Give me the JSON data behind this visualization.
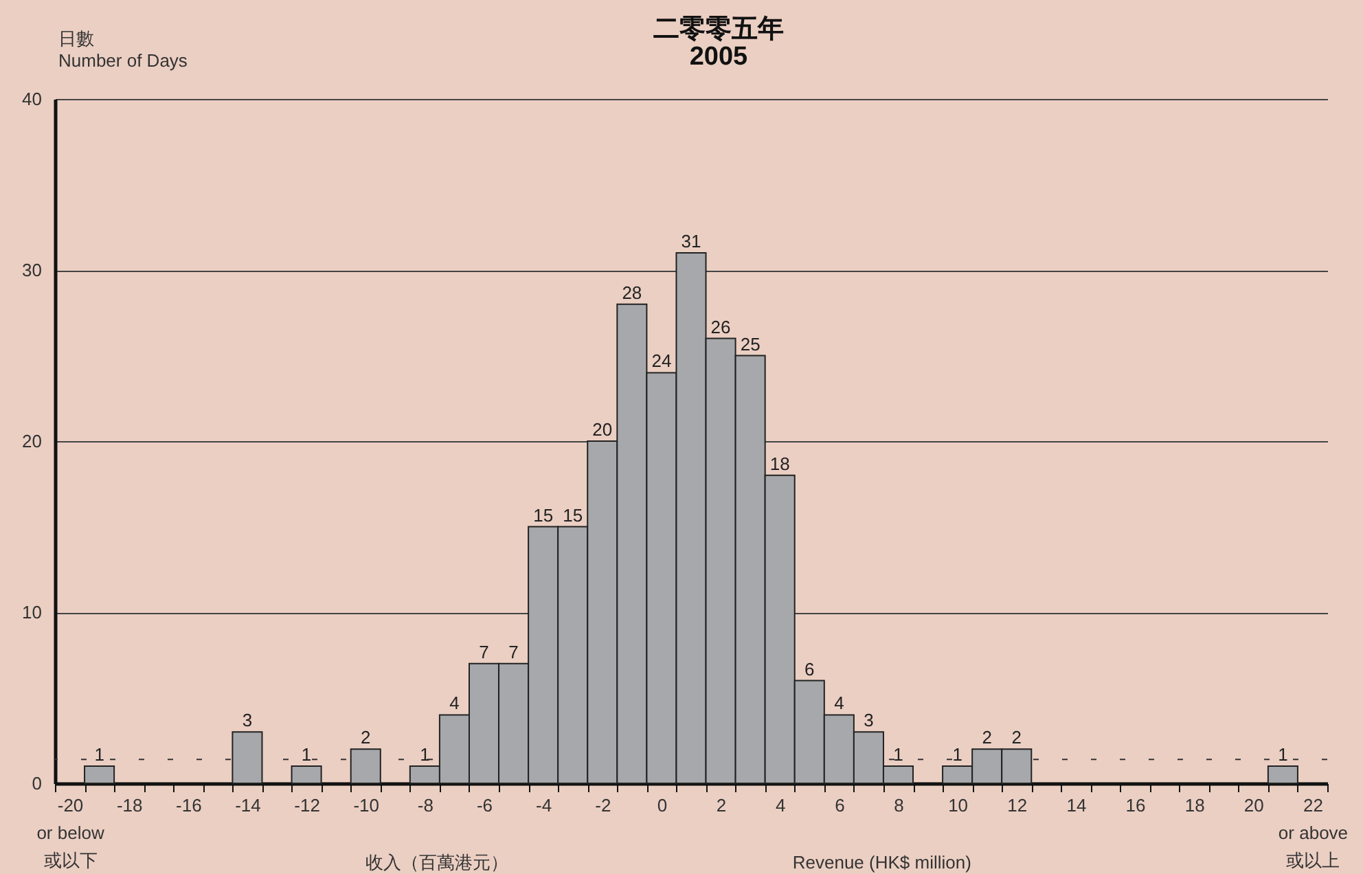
{
  "chart_data": {
    "type": "bar",
    "title": "二零零五年\n2005",
    "ylabel": "日數\nNumber of Days",
    "xlabel": "收入（百萬港元）\nRevenue (HK$ million)",
    "categories": [
      "-20\nor below\n或以下",
      null,
      "-18",
      null,
      "-16",
      null,
      "-14",
      null,
      "-12",
      null,
      "-10",
      null,
      "-8",
      null,
      "-6",
      null,
      "-4",
      null,
      "-2",
      null,
      "0",
      null,
      "2",
      null,
      "4",
      null,
      "6",
      null,
      "8",
      null,
      "10",
      null,
      "12",
      null,
      "14",
      null,
      "16",
      null,
      "18",
      null,
      "20",
      null,
      "22\nor above\n或以上"
    ],
    "values": [
      0,
      1,
      0,
      0,
      0,
      0,
      3,
      0,
      1,
      0,
      2,
      0,
      1,
      4,
      7,
      7,
      15,
      15,
      20,
      28,
      24,
      31,
      26,
      25,
      18,
      6,
      4,
      3,
      1,
      0,
      1,
      2,
      2,
      0,
      0,
      0,
      0,
      0,
      0,
      0,
      0,
      1,
      0
    ],
    "value_labels": [
      null,
      "1",
      null,
      null,
      null,
      null,
      "3",
      null,
      "1",
      null,
      "2",
      null,
      "1",
      "4",
      "7",
      "7",
      "15",
      "15",
      "20",
      "28",
      "24",
      "31",
      "26",
      "25",
      "18",
      "6",
      "4",
      "3",
      "1",
      null,
      "1",
      "2",
      "2",
      null,
      null,
      null,
      null,
      null,
      null,
      null,
      null,
      "1",
      null
    ],
    "color": "#a6a8ab",
    "ylim": [
      0,
      40
    ],
    "yticks": [
      0,
      10,
      20,
      30,
      40
    ],
    "grid": "y",
    "ref_lines": [
      {
        "axis": "y",
        "value": 1.4,
        "line_style": "dashed",
        "color": "#333333"
      }
    ]
  }
}
